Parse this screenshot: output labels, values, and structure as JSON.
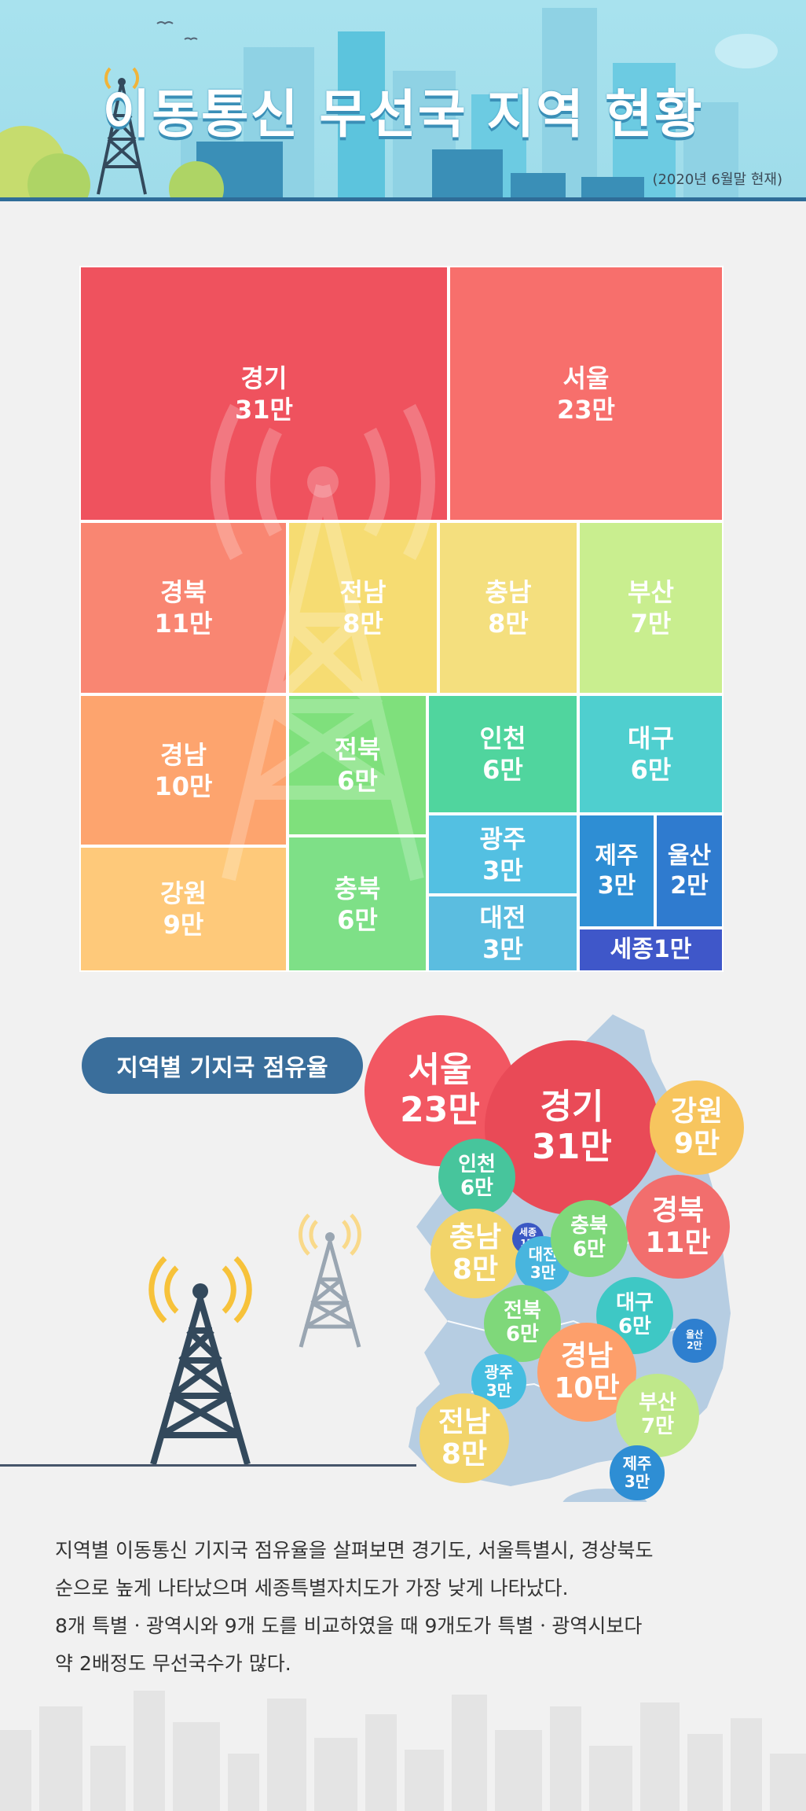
{
  "header": {
    "title": "이동통신 무선국 지역 현황",
    "date": "(2020년 6월말 현재)"
  },
  "colors": {
    "header_bg": "#a8e2ee",
    "header_line": "#2f6d98",
    "pill": "#3a6e9b",
    "map": "#b6cde2"
  },
  "chart_data": [
    {
      "type": "treemap",
      "unit": "만",
      "categories": [
        "경기",
        "서울",
        "경북",
        "경남",
        "강원",
        "전남",
        "충남",
        "부산",
        "전북",
        "충북",
        "인천",
        "대구",
        "광주",
        "대전",
        "제주",
        "울산",
        "세종"
      ],
      "values": [
        31,
        23,
        11,
        10,
        9,
        8,
        8,
        7,
        6,
        6,
        6,
        6,
        3,
        3,
        3,
        2,
        1
      ],
      "labels": [
        "31만",
        "23만",
        "11만",
        "10만",
        "9만",
        "8만",
        "8만",
        "7만",
        "6만",
        "6만",
        "6만",
        "6만",
        "3만",
        "3만",
        "3만",
        "2만",
        "1만"
      ],
      "colors": [
        "#ef525e",
        "#f76f6c",
        "#f98672",
        "#fda46e",
        "#fec97a",
        "#f6dc72",
        "#f4df7e",
        "#c9ee8f",
        "#7fe07c",
        "#7ee087",
        "#50d59e",
        "#4fcfcf",
        "#53c0e2",
        "#5bbde0",
        "#2e8ed4",
        "#2f7bcf",
        "#3f57c9"
      ]
    },
    {
      "type": "bubble",
      "title": "지역별 기지국 점유율",
      "unit": "만",
      "categories": [
        "서울",
        "경기",
        "강원",
        "인천",
        "경북",
        "충남",
        "세종",
        "대전",
        "충북",
        "전북",
        "대구",
        "울산",
        "광주",
        "경남",
        "부산",
        "전남",
        "제주"
      ],
      "values": [
        23,
        31,
        9,
        6,
        11,
        8,
        1,
        3,
        6,
        6,
        6,
        2,
        3,
        10,
        7,
        8,
        3
      ],
      "labels": [
        "23만",
        "31만",
        "9만",
        "6만",
        "11만",
        "8만",
        "1만",
        "3만",
        "6만",
        "6만",
        "6만",
        "2만",
        "3만",
        "10만",
        "7만",
        "8만",
        "3만"
      ]
    }
  ],
  "description": [
    "지역별 이동통신 기지국 점유율을 살펴보면 경기도, 서울특별시, 경상북도",
    "순으로 높게 나타났으며 세종특별자치도가 가장 낮게 나타났다.",
    "8개 특별ㆍ광역시와 9개 도를 비교하였을 때 9개도가 특별ㆍ광역시보다",
    "약 2배정도 무선국수가 많다."
  ]
}
